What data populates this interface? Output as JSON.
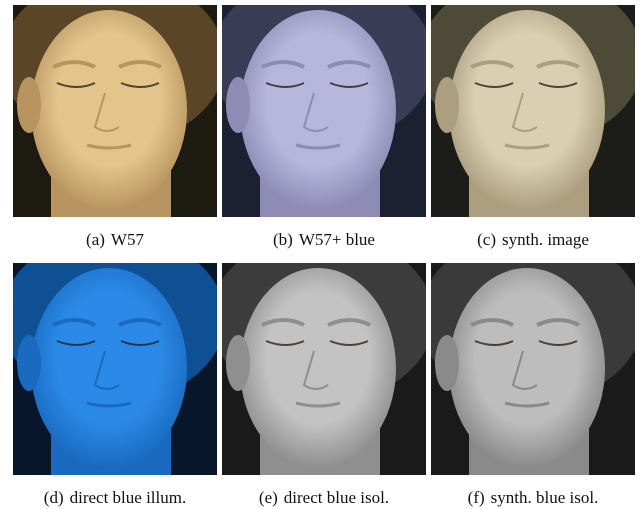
{
  "figure": {
    "panels": [
      {
        "label": "(a)",
        "caption": "W57"
      },
      {
        "label": "(b)",
        "caption": "W57+ blue"
      },
      {
        "label": "(c)",
        "caption": "synth. image"
      },
      {
        "label": "(d)",
        "caption": "direct blue illum."
      },
      {
        "label": "(e)",
        "caption": "direct blue isol."
      },
      {
        "label": "(f)",
        "caption": "synth. blue isol."
      }
    ]
  }
}
